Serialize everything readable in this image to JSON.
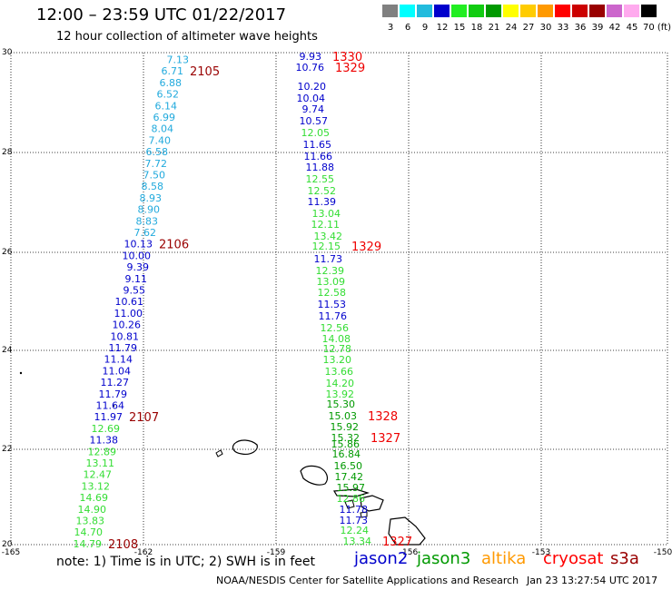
{
  "header": {
    "title": "12:00 – 23:59 UTC 01/22/2017",
    "subtitle": "12 hour collection of altimeter wave heights"
  },
  "color_scale": {
    "swatches": [
      {
        "color": "#808080",
        "label": "3"
      },
      {
        "color": "#00ffff",
        "label": "6"
      },
      {
        "color": "#22bbdd",
        "label": "9"
      },
      {
        "color": "#0000cc",
        "label": "12"
      },
      {
        "color": "#22ee22",
        "label": "15"
      },
      {
        "color": "#11cc11",
        "label": "18"
      },
      {
        "color": "#009900",
        "label": "21"
      },
      {
        "color": "#ffff00",
        "label": "24"
      },
      {
        "color": "#ffcc00",
        "label": "27"
      },
      {
        "color": "#ff9900",
        "label": "30"
      },
      {
        "color": "#ff0000",
        "label": "33"
      },
      {
        "color": "#cc0000",
        "label": "36"
      },
      {
        "color": "#990000",
        "label": "39"
      },
      {
        "color": "#cc66cc",
        "label": "42"
      },
      {
        "color": "#ffaaee",
        "label": "45"
      },
      {
        "color": "#000000",
        "label": "70 (ft)"
      }
    ]
  },
  "map": {
    "lon_ticks": [
      "-165",
      "-162",
      "-159",
      "-156",
      "-153",
      "-150"
    ],
    "lat_ticks": [
      "30",
      "28",
      "26",
      "24",
      "22",
      "20"
    ]
  },
  "track_west": {
    "values": [
      "7.13",
      "6.71",
      "6.88",
      "6.52",
      "6.14",
      "6.99",
      "8.04",
      "7.40",
      "6.58",
      "7.72",
      "7.50",
      "8.58",
      "8.93",
      "8.90",
      "8.83",
      "7.62",
      "10.13",
      "10.00",
      "9.39",
      "9.11",
      "9.55",
      "10.61",
      "11.00",
      "10.26",
      "10.81",
      "11.79",
      "11.14",
      "11.04",
      "11.27",
      "11.79",
      "11.64",
      "11.97",
      "12.69",
      "11.38",
      "12.89",
      "13.11",
      "12.47",
      "13.12",
      "14.69",
      "14.90",
      "13.83",
      "14.70",
      "14.79"
    ],
    "time_labels": [
      {
        "text": "2105",
        "index": 1
      },
      {
        "text": "2106",
        "index": 16
      },
      {
        "text": "2107",
        "index": 31
      },
      {
        "text": "2108",
        "index": 42
      }
    ]
  },
  "track_east": {
    "values": [
      "9.93",
      "10.76",
      "10.20",
      "10.04",
      "9.74",
      "10.57",
      "12.05",
      "11.65",
      "11.66",
      "11.88",
      "12.55",
      "12.52",
      "11.39",
      "13.04",
      "12.11",
      "13.42",
      "12.15",
      "11.73",
      "12.39",
      "13.09",
      "12.58",
      "11.53",
      "11.76",
      "12.56",
      "14.08",
      "12.78",
      "13.20",
      "13.66",
      "14.20",
      "13.92",
      "15.30",
      "15.03",
      "15.92",
      "15.32",
      "15.86",
      "16.84",
      "16.50",
      "17.42",
      "15.97",
      "12.86",
      "11.78",
      "11.73",
      "12.24",
      "13.34"
    ],
    "time_labels": [
      {
        "text": "1330",
        "index": 0
      },
      {
        "text": "1329",
        "index": 1
      },
      {
        "text": "1329",
        "index": 16
      },
      {
        "text": "1328",
        "index": 31
      },
      {
        "text": "1327",
        "index": 33
      },
      {
        "text": "1327",
        "index": 43
      }
    ]
  },
  "legend": {
    "note": "note: 1) Time is in UTC; 2) SWH is in feet",
    "items": [
      {
        "label": "jason2",
        "color": "#0000cc"
      },
      {
        "label": "jason3",
        "color": "#009900"
      },
      {
        "label": "altika",
        "color": "#ff9900"
      },
      {
        "label": "cryosat",
        "color": "#ff0000"
      },
      {
        "label": "s3a",
        "color": "#990000"
      }
    ]
  },
  "footer": {
    "credit": "NOAA/NESDIS Center for Satellite Applications and Research",
    "timestamp": "Jan 23 13:27:54 UTC 2017"
  }
}
